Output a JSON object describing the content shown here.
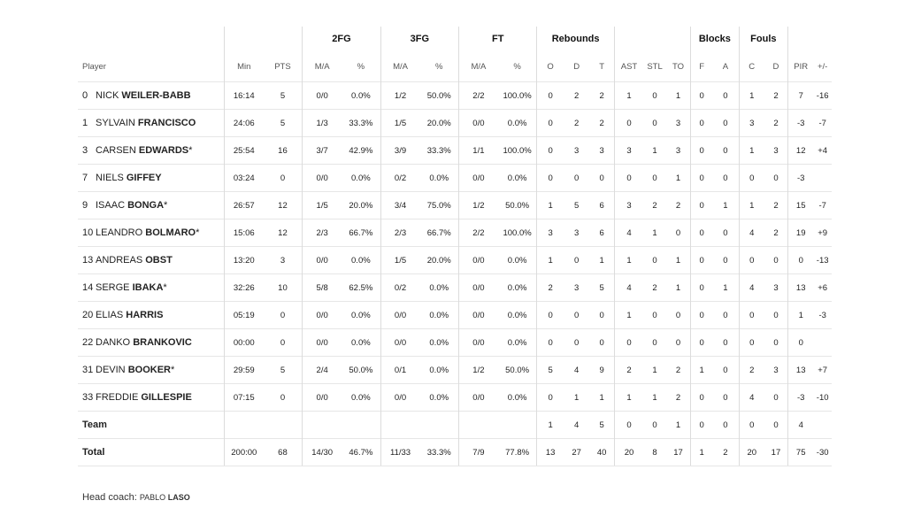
{
  "groups": {
    "fg2": "2FG",
    "fg3": "3FG",
    "ft": "FT",
    "reb": "Rebounds",
    "blk": "Blocks",
    "fouls": "Fouls"
  },
  "headers": {
    "player": "Player",
    "min": "Min",
    "pts": "PTS",
    "fg2_ma": "M/A",
    "fg2_pct": "%",
    "fg3_ma": "M/A",
    "fg3_pct": "%",
    "ft_ma": "M/A",
    "ft_pct": "%",
    "o": "O",
    "d": "D",
    "t": "T",
    "ast": "AST",
    "stl": "STL",
    "to": "TO",
    "bf": "F",
    "ba": "A",
    "fc": "C",
    "fd": "D",
    "pir": "PIR",
    "pm": "+/-"
  },
  "players": [
    {
      "num": "0",
      "first": "NICK",
      "last": "WEILER-BABB",
      "star": "",
      "min": "16:14",
      "pts": "5",
      "fg2": "0/0",
      "fg2p": "0.0%",
      "fg3": "1/2",
      "fg3p": "50.0%",
      "ft": "2/2",
      "ftp": "100.0%",
      "o": "0",
      "d": "2",
      "t": "2",
      "ast": "1",
      "stl": "0",
      "to": "1",
      "bf": "0",
      "ba": "0",
      "fc": "1",
      "fd": "2",
      "pir": "7",
      "pm": "-16"
    },
    {
      "num": "1",
      "first": "SYLVAIN",
      "last": "FRANCISCO",
      "star": "",
      "min": "24:06",
      "pts": "5",
      "fg2": "1/3",
      "fg2p": "33.3%",
      "fg3": "1/5",
      "fg3p": "20.0%",
      "ft": "0/0",
      "ftp": "0.0%",
      "o": "0",
      "d": "2",
      "t": "2",
      "ast": "0",
      "stl": "0",
      "to": "3",
      "bf": "0",
      "ba": "0",
      "fc": "3",
      "fd": "2",
      "pir": "-3",
      "pm": "-7"
    },
    {
      "num": "3",
      "first": "CARSEN",
      "last": "EDWARDS",
      "star": "*",
      "min": "25:54",
      "pts": "16",
      "fg2": "3/7",
      "fg2p": "42.9%",
      "fg3": "3/9",
      "fg3p": "33.3%",
      "ft": "1/1",
      "ftp": "100.0%",
      "o": "0",
      "d": "3",
      "t": "3",
      "ast": "3",
      "stl": "1",
      "to": "3",
      "bf": "0",
      "ba": "0",
      "fc": "1",
      "fd": "3",
      "pir": "12",
      "pm": "+4"
    },
    {
      "num": "7",
      "first": "NIELS",
      "last": "GIFFEY",
      "star": "",
      "min": "03:24",
      "pts": "0",
      "fg2": "0/0",
      "fg2p": "0.0%",
      "fg3": "0/2",
      "fg3p": "0.0%",
      "ft": "0/0",
      "ftp": "0.0%",
      "o": "0",
      "d": "0",
      "t": "0",
      "ast": "0",
      "stl": "0",
      "to": "1",
      "bf": "0",
      "ba": "0",
      "fc": "0",
      "fd": "0",
      "pir": "-3",
      "pm": ""
    },
    {
      "num": "9",
      "first": "ISAAC",
      "last": "BONGA",
      "star": "*",
      "min": "26:57",
      "pts": "12",
      "fg2": "1/5",
      "fg2p": "20.0%",
      "fg3": "3/4",
      "fg3p": "75.0%",
      "ft": "1/2",
      "ftp": "50.0%",
      "o": "1",
      "d": "5",
      "t": "6",
      "ast": "3",
      "stl": "2",
      "to": "2",
      "bf": "0",
      "ba": "1",
      "fc": "1",
      "fd": "2",
      "pir": "15",
      "pm": "-7"
    },
    {
      "num": "10",
      "first": "LEANDRO",
      "last": "BOLMARO",
      "star": "*",
      "min": "15:06",
      "pts": "12",
      "fg2": "2/3",
      "fg2p": "66.7%",
      "fg3": "2/3",
      "fg3p": "66.7%",
      "ft": "2/2",
      "ftp": "100.0%",
      "o": "3",
      "d": "3",
      "t": "6",
      "ast": "4",
      "stl": "1",
      "to": "0",
      "bf": "0",
      "ba": "0",
      "fc": "4",
      "fd": "2",
      "pir": "19",
      "pm": "+9"
    },
    {
      "num": "13",
      "first": "ANDREAS",
      "last": "OBST",
      "star": "",
      "min": "13:20",
      "pts": "3",
      "fg2": "0/0",
      "fg2p": "0.0%",
      "fg3": "1/5",
      "fg3p": "20.0%",
      "ft": "0/0",
      "ftp": "0.0%",
      "o": "1",
      "d": "0",
      "t": "1",
      "ast": "1",
      "stl": "0",
      "to": "1",
      "bf": "0",
      "ba": "0",
      "fc": "0",
      "fd": "0",
      "pir": "0",
      "pm": "-13"
    },
    {
      "num": "14",
      "first": "SERGE",
      "last": "IBAKA",
      "star": "*",
      "min": "32:26",
      "pts": "10",
      "fg2": "5/8",
      "fg2p": "62.5%",
      "fg3": "0/2",
      "fg3p": "0.0%",
      "ft": "0/0",
      "ftp": "0.0%",
      "o": "2",
      "d": "3",
      "t": "5",
      "ast": "4",
      "stl": "2",
      "to": "1",
      "bf": "0",
      "ba": "1",
      "fc": "4",
      "fd": "3",
      "pir": "13",
      "pm": "+6"
    },
    {
      "num": "20",
      "first": "ELIAS",
      "last": "HARRIS",
      "star": "",
      "min": "05:19",
      "pts": "0",
      "fg2": "0/0",
      "fg2p": "0.0%",
      "fg3": "0/0",
      "fg3p": "0.0%",
      "ft": "0/0",
      "ftp": "0.0%",
      "o": "0",
      "d": "0",
      "t": "0",
      "ast": "1",
      "stl": "0",
      "to": "0",
      "bf": "0",
      "ba": "0",
      "fc": "0",
      "fd": "0",
      "pir": "1",
      "pm": "-3"
    },
    {
      "num": "22",
      "first": "DANKO",
      "last": "BRANKOVIC",
      "star": "",
      "min": "00:00",
      "pts": "0",
      "fg2": "0/0",
      "fg2p": "0.0%",
      "fg3": "0/0",
      "fg3p": "0.0%",
      "ft": "0/0",
      "ftp": "0.0%",
      "o": "0",
      "d": "0",
      "t": "0",
      "ast": "0",
      "stl": "0",
      "to": "0",
      "bf": "0",
      "ba": "0",
      "fc": "0",
      "fd": "0",
      "pir": "0",
      "pm": ""
    },
    {
      "num": "31",
      "first": "DEVIN",
      "last": "BOOKER",
      "star": "*",
      "min": "29:59",
      "pts": "5",
      "fg2": "2/4",
      "fg2p": "50.0%",
      "fg3": "0/1",
      "fg3p": "0.0%",
      "ft": "1/2",
      "ftp": "50.0%",
      "o": "5",
      "d": "4",
      "t": "9",
      "ast": "2",
      "stl": "1",
      "to": "2",
      "bf": "1",
      "ba": "0",
      "fc": "2",
      "fd": "3",
      "pir": "13",
      "pm": "+7"
    },
    {
      "num": "33",
      "first": "FREDDIE",
      "last": "GILLESPIE",
      "star": "",
      "min": "07:15",
      "pts": "0",
      "fg2": "0/0",
      "fg2p": "0.0%",
      "fg3": "0/0",
      "fg3p": "0.0%",
      "ft": "0/0",
      "ftp": "0.0%",
      "o": "0",
      "d": "1",
      "t": "1",
      "ast": "1",
      "stl": "1",
      "to": "2",
      "bf": "0",
      "ba": "0",
      "fc": "4",
      "fd": "0",
      "pir": "-3",
      "pm": "-10"
    }
  ],
  "team": {
    "label": "Team",
    "o": "1",
    "d": "4",
    "t": "5",
    "ast": "0",
    "stl": "0",
    "to": "1",
    "bf": "0",
    "ba": "0",
    "fc": "0",
    "fd": "0",
    "pir": "4"
  },
  "total": {
    "label": "Total",
    "min": "200:00",
    "pts": "68",
    "fg2": "14/30",
    "fg2p": "46.7%",
    "fg3": "11/33",
    "fg3p": "33.3%",
    "ft": "7/9",
    "ftp": "77.8%",
    "o": "13",
    "d": "27",
    "t": "40",
    "ast": "20",
    "stl": "8",
    "to": "17",
    "bf": "1",
    "ba": "2",
    "fc": "20",
    "fd": "17",
    "pir": "75",
    "pm": "-30"
  },
  "coach": {
    "label": "Head coach:",
    "first": "PABLO",
    "last": "LASO"
  }
}
